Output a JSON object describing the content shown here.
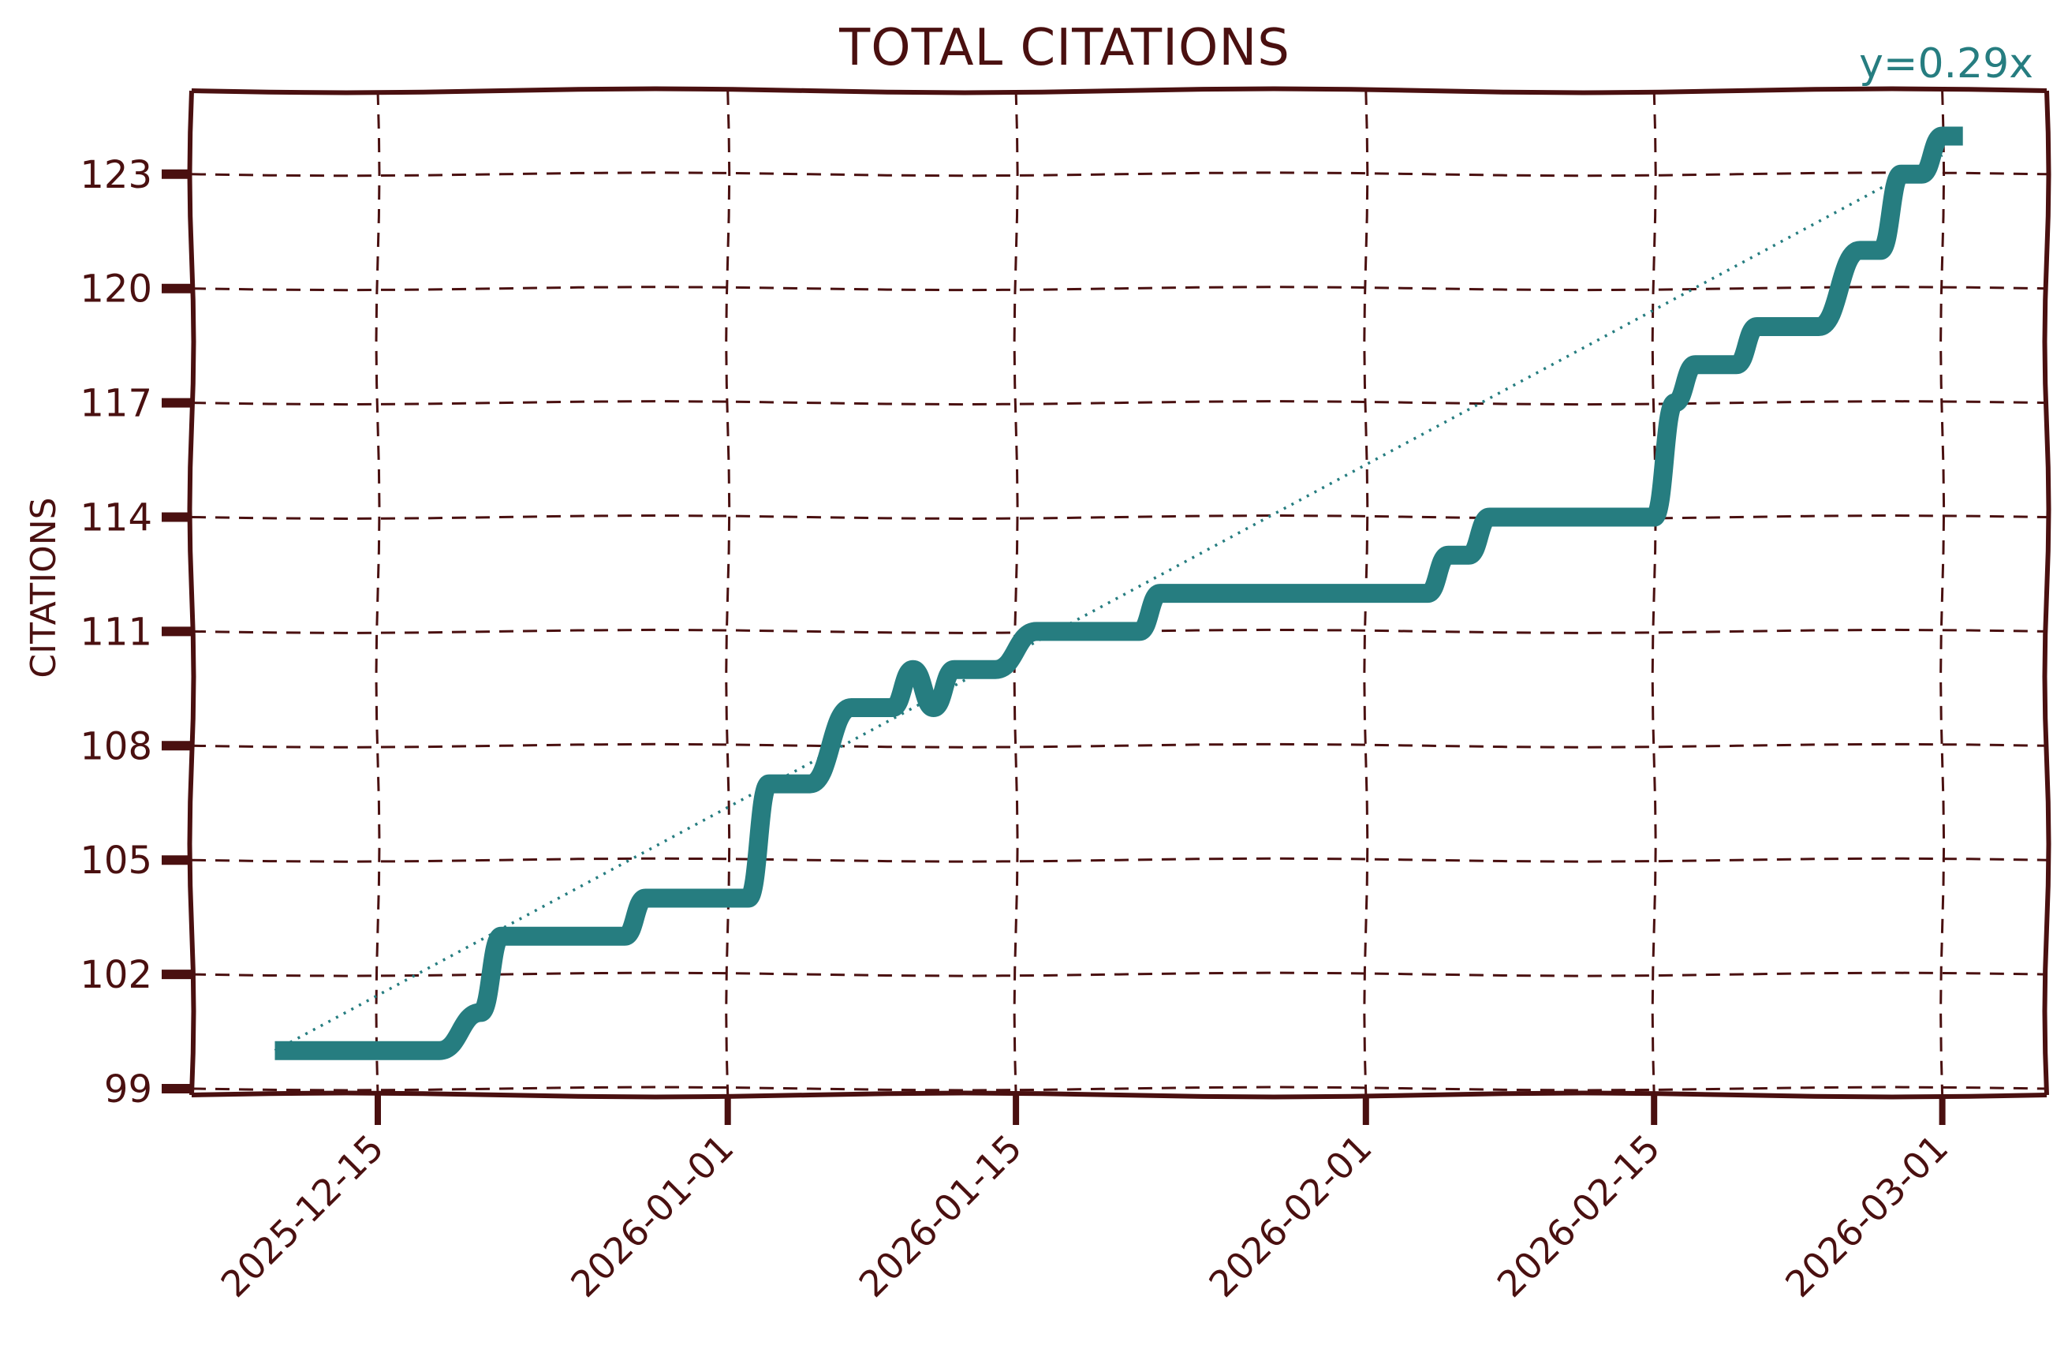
{
  "chart_data": {
    "type": "line",
    "title": "TOTAL CITATIONS",
    "xlabel": "",
    "ylabel": "CITATIONS",
    "ylim": [
      98.8,
      125.2
    ],
    "yticks": [
      99,
      102,
      105,
      108,
      111,
      114,
      117,
      120,
      123
    ],
    "xticks": [
      "2025-12-15",
      "2026-01-01",
      "2026-01-15",
      "2026-02-01",
      "2026-02-15",
      "2026-03-01"
    ],
    "grid": true,
    "style": "xkcd",
    "annotation": "y=0.29x",
    "colors": {
      "line": "#267d80",
      "axes": "#4a1010",
      "trend": "#267d80"
    },
    "series": [
      {
        "name": "Total citations",
        "x": [
          "2025-12-10",
          "2025-12-13",
          "2025-12-16",
          "2025-12-18",
          "2025-12-20",
          "2025-12-21",
          "2025-12-24",
          "2025-12-27",
          "2025-12-28",
          "2026-01-01",
          "2026-01-02",
          "2026-01-03",
          "2026-01-05",
          "2026-01-07",
          "2026-01-09",
          "2026-01-10",
          "2026-01-11",
          "2026-01-12",
          "2026-01-14",
          "2026-01-16",
          "2026-01-21",
          "2026-01-22",
          "2026-02-01",
          "2026-02-04",
          "2026-02-05",
          "2026-02-06",
          "2026-02-07",
          "2026-02-15",
          "2026-02-16",
          "2026-02-17",
          "2026-02-19",
          "2026-02-20",
          "2026-02-23",
          "2026-02-25",
          "2026-02-26",
          "2026-02-27",
          "2026-02-28",
          "2026-03-01",
          "2026-03-02"
        ],
        "values": [
          100,
          100,
          100,
          100,
          101,
          103,
          103,
          103,
          104,
          104,
          104,
          107,
          107,
          109,
          109,
          110,
          109,
          110,
          110,
          111,
          111,
          112,
          112,
          112,
          113,
          113,
          114,
          114,
          117,
          118,
          118,
          119,
          119,
          121,
          121,
          123,
          123,
          124,
          124
        ]
      },
      {
        "name": "Trend (y=0.29x)",
        "style": "dotted",
        "x": [
          "2025-12-10",
          "2026-03-01"
        ],
        "values": [
          100.0,
          123.5
        ]
      }
    ]
  }
}
